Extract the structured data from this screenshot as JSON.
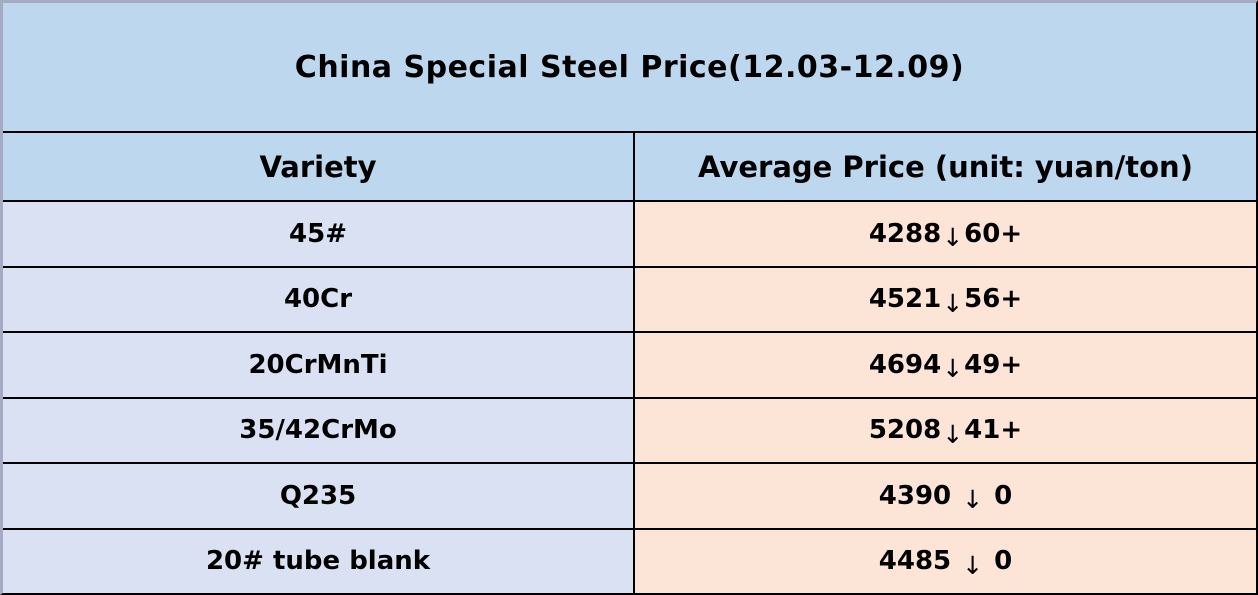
{
  "title": "China Special Steel Price(12.03-12.09)",
  "table": {
    "columns": [
      "Variety",
      "Average Price (unit: yuan/ton)"
    ],
    "rows": [
      {
        "variety": "45#",
        "price": "4288",
        "arrow": "↓",
        "change": "60+",
        "spaced": false
      },
      {
        "variety": "40Cr",
        "price": "4521",
        "arrow": "↓",
        "change": "56+",
        "spaced": false
      },
      {
        "variety": "20CrMnTi",
        "price": "4694",
        "arrow": "↓",
        "change": "49+",
        "spaced": false
      },
      {
        "variety": "35/42CrMo",
        "price": "5208",
        "arrow": "↓",
        "change": "41+",
        "spaced": false
      },
      {
        "variety": "Q235",
        "price": "4390",
        "arrow": "↓",
        "change": "0",
        "spaced": true
      },
      {
        "variety": "20# tube blank",
        "price": "4485",
        "arrow": "↓",
        "change": "0",
        "spaced": true
      }
    ]
  },
  "colors": {
    "title_header_bg": "#bdd7ee",
    "variety_cell_bg": "#d9e1f2",
    "price_cell_bg": "#fce4d6",
    "grid_line": "#000000",
    "outer_frame": "#a6abc3",
    "text": "#000000"
  },
  "chart_data": {
    "type": "table",
    "title": "China Special Steel Price(12.03-12.09)",
    "columns": [
      "Variety",
      "Average Price (unit: yuan/ton)"
    ],
    "rows": [
      [
        "45#",
        "4288↓60+"
      ],
      [
        "40Cr",
        "4521↓56+"
      ],
      [
        "20CrMnTi",
        "4694↓49+"
      ],
      [
        "35/42CrMo",
        "5208↓41+"
      ],
      [
        "Q235",
        "4390 ↓ 0"
      ],
      [
        "20# tube blank",
        "4485 ↓ 0"
      ]
    ],
    "varieties": [
      "45#",
      "40Cr",
      "20CrMnTi",
      "35/42CrMo",
      "Q235",
      "20# tube blank"
    ],
    "average_price_yuan_per_ton": [
      4288,
      4521,
      4694,
      5208,
      4390,
      4485
    ],
    "price_change_direction": [
      "down",
      "down",
      "down",
      "down",
      "down",
      "down"
    ],
    "price_change_displayed": [
      "60+",
      "56+",
      "49+",
      "41+",
      "0",
      "0"
    ]
  }
}
